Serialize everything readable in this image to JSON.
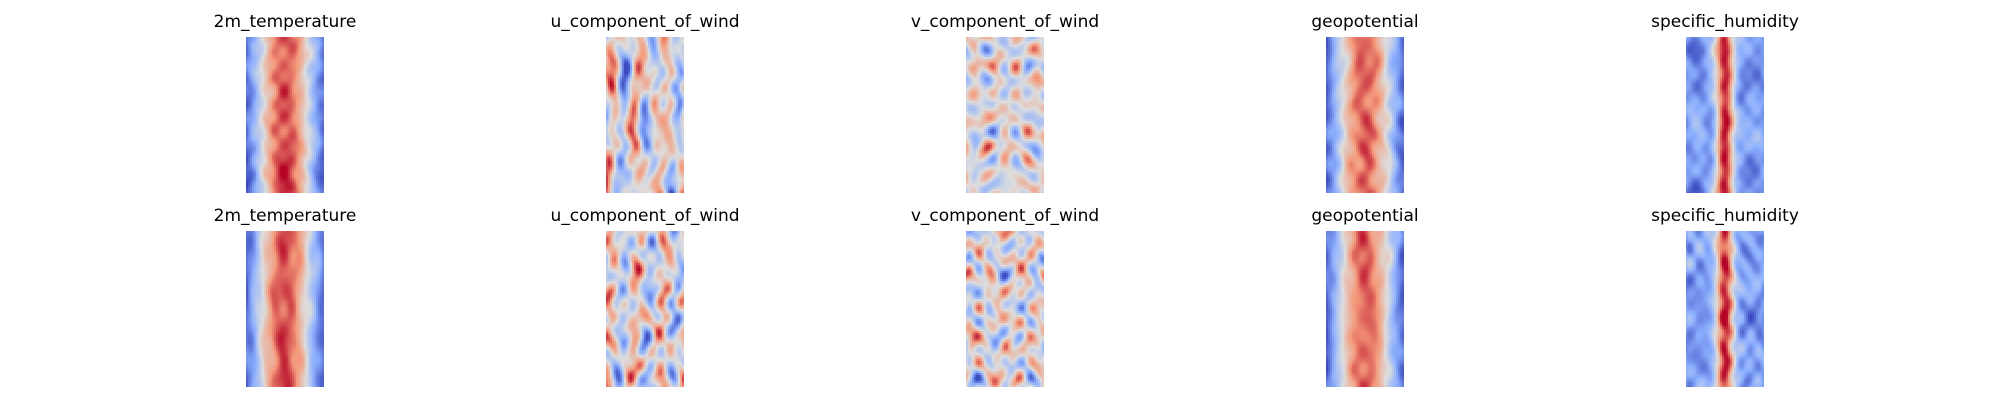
{
  "chart_data": {
    "type": "heatmap",
    "colormap": "coolwarm",
    "colors": {
      "cold": "#3b4cc0",
      "neutral": "#dddddd",
      "warm": "#b40426"
    },
    "axes_visible": false,
    "rows": [
      {
        "panels": [
          {
            "title": "2m_temperature",
            "variable": "2m_temperature"
          },
          {
            "title": "u_component_of_wind",
            "variable": "u_component_of_wind"
          },
          {
            "title": "v_component_of_wind",
            "variable": "v_component_of_wind"
          },
          {
            "title": "geopotential",
            "variable": "geopotential"
          },
          {
            "title": "specific_humidity",
            "variable": "specific_humidity"
          }
        ]
      },
      {
        "panels": [
          {
            "title": "2m_temperature",
            "variable": "2m_temperature"
          },
          {
            "title": "u_component_of_wind",
            "variable": "u_component_of_wind"
          },
          {
            "title": "v_component_of_wind",
            "variable": "v_component_of_wind"
          },
          {
            "title": "geopotential",
            "variable": "geopotential"
          },
          {
            "title": "specific_humidity",
            "variable": "specific_humidity"
          }
        ]
      }
    ]
  }
}
